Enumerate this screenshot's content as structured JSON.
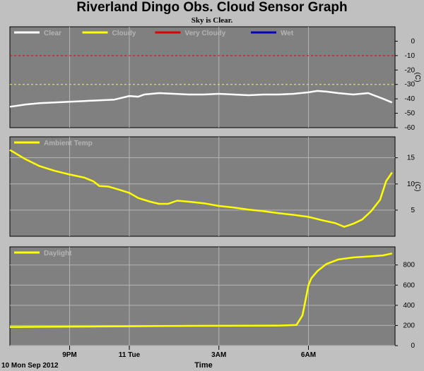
{
  "title": "Riverland Dingo Obs. Cloud Sensor Graph",
  "subtitle": "Sky is Clear.",
  "colors": {
    "background": "#c0c0c0",
    "plot_bg": "#808080",
    "grid": "#b4b4b4",
    "clear": "#ffffff",
    "cloudy": "#ffff00",
    "very_cloudy": "#e00000",
    "wet": "#0000c0"
  },
  "x_axis": {
    "label": "Time",
    "date_label": "10 Mon Sep 2012",
    "ticks": [
      "9PM",
      "11 Tue",
      "3AM",
      "6AM"
    ],
    "tick_hours": [
      2,
      4,
      7,
      10
    ],
    "range_hours": [
      0,
      12.9
    ]
  },
  "chart_data": [
    {
      "type": "line",
      "title": "",
      "ylabel": "(C)",
      "ylim": [
        -60,
        10
      ],
      "y_ticks": [
        0,
        -10,
        -20,
        -30,
        -40,
        -50,
        -60
      ],
      "thresholds": [
        {
          "name": "Cloudy",
          "value": -30,
          "color": "#ffff00"
        },
        {
          "name": "Very Cloudy",
          "value": -10,
          "color": "#e00000"
        }
      ],
      "legend": [
        "Clear",
        "Cloudy",
        "Very Cloudy",
        "Wet"
      ],
      "series": [
        {
          "name": "Clear",
          "x": [
            0,
            0.5,
            1,
            1.5,
            2,
            2.5,
            3,
            3.5,
            4,
            4.3,
            4.5,
            5,
            5.5,
            6,
            6.5,
            7,
            7.5,
            8,
            8.5,
            9,
            9.5,
            10,
            10.3,
            10.6,
            11,
            11.5,
            12,
            12.5,
            12.8
          ],
          "y": [
            -45.5,
            -44,
            -43,
            -42.5,
            -42,
            -41.5,
            -41,
            -40.5,
            -38,
            -38.5,
            -37,
            -36,
            -36.5,
            -37,
            -37,
            -36.5,
            -37,
            -37.5,
            -37,
            -37,
            -36.5,
            -35.5,
            -34.5,
            -35,
            -36,
            -37,
            -36,
            -40,
            -42.5
          ]
        }
      ]
    },
    {
      "type": "line",
      "title": "",
      "ylabel": "(C)",
      "ylim": [
        0,
        19
      ],
      "y_ticks": [
        5,
        10,
        15
      ],
      "legend": [
        "Ambient Temp"
      ],
      "series": [
        {
          "name": "Ambient Temp",
          "x": [
            0,
            0.5,
            1,
            1.5,
            2,
            2.5,
            2.8,
            3,
            3.3,
            3.6,
            4,
            4.3,
            4.7,
            5,
            5.3,
            5.6,
            6,
            6.5,
            7,
            7.5,
            8,
            8.5,
            9,
            9.5,
            10,
            10.5,
            10.9,
            11.2,
            11.5,
            11.8,
            12.1,
            12.4,
            12.6,
            12.8
          ],
          "y": [
            16.5,
            14.8,
            13.4,
            12.5,
            11.8,
            11.2,
            10.5,
            9.6,
            9.5,
            9.0,
            8.3,
            7.3,
            6.6,
            6.2,
            6.2,
            6.8,
            6.6,
            6.3,
            5.8,
            5.5,
            5.1,
            4.8,
            4.4,
            4.1,
            3.7,
            3.0,
            2.5,
            1.8,
            2.4,
            3.2,
            4.8,
            7.0,
            10.5,
            12.2
          ]
        }
      ]
    },
    {
      "type": "line",
      "title": "",
      "ylabel": "",
      "ylim": [
        0,
        980
      ],
      "y_ticks": [
        0,
        200,
        400,
        600,
        800
      ],
      "legend": [
        "Daylight"
      ],
      "series": [
        {
          "name": "Daylight",
          "x": [
            0,
            1,
            2,
            3,
            4,
            5,
            6,
            7,
            8,
            9,
            9.6,
            9.8,
            9.9,
            10.0,
            10.1,
            10.3,
            10.6,
            11,
            11.5,
            12,
            12.5,
            12.8
          ],
          "y": [
            185,
            186,
            188,
            190,
            192,
            194,
            196,
            197,
            198,
            199,
            205,
            300,
            450,
            600,
            670,
            740,
            810,
            855,
            875,
            885,
            895,
            915
          ]
        }
      ]
    }
  ]
}
